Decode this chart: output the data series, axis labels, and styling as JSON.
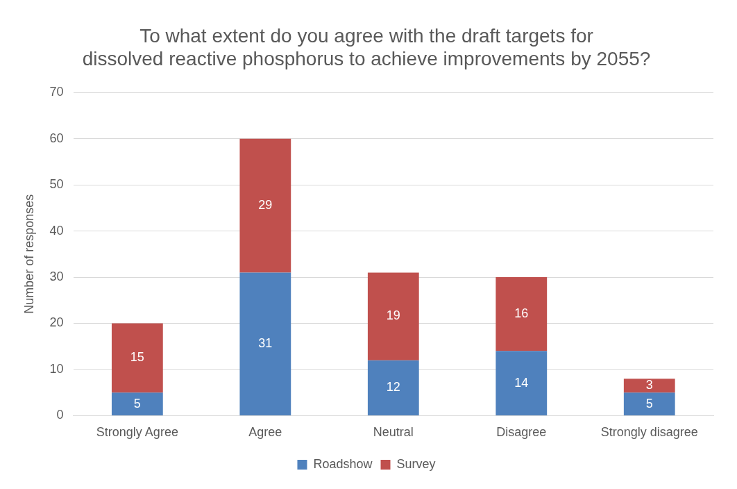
{
  "chart_data": {
    "type": "bar",
    "title": "To what extent do you agree with the draft targets for dissolved reactive phosphorus to achieve improvements by 2055?",
    "ylabel": "Number of responses",
    "categories": [
      "Strongly Agree",
      "Agree",
      "Neutral",
      "Disagree",
      "Strongly disagree"
    ],
    "series": [
      {
        "name": "Roadshow",
        "color": "#4f81bd",
        "values": [
          5,
          31,
          12,
          14,
          5
        ]
      },
      {
        "name": "Survey",
        "color": "#c0504d",
        "values": [
          15,
          29,
          19,
          16,
          3
        ]
      }
    ],
    "stacked": true,
    "ylim": [
      0,
      70
    ],
    "yticks": [
      0,
      10,
      20,
      30,
      40,
      50,
      60,
      70
    ],
    "grid": "y",
    "legend": "bottom",
    "data_labels": true
  }
}
